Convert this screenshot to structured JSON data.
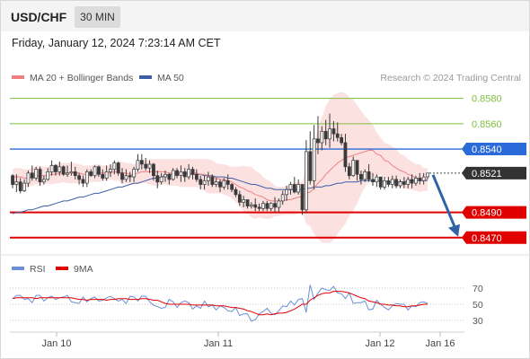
{
  "header": {
    "symbol": "USD/CHF",
    "timeframe": "30 MIN",
    "datetime": "Friday, January 12, 2024 7:23:14 AM CET"
  },
  "legend": {
    "ma20": "MA 20 + Bollinger Bands",
    "ma50": "MA 50",
    "credit": "Research © 2024 Trading Central"
  },
  "rsi_legend": {
    "rsi": "RSI",
    "ma9": "9MA"
  },
  "colors": {
    "resistance": "#7fbf40",
    "pivot": "#2a6ad9",
    "support": "#e00000",
    "ma20": "#f08080",
    "bollinger_fill": "#fbdcdc",
    "ma50": "#3b5ea8",
    "arrow": "#2f63a6",
    "candle_up": "#f4f4f4",
    "candle_down": "#3a3a3a",
    "rsi": "#6a8fd8",
    "rsi_ma": "#e00000"
  },
  "chart_data": {
    "type": "candlestick",
    "ylim": [
      0.8467,
      0.8584
    ],
    "levels": [
      {
        "value": 0.858,
        "label": "0.8580",
        "kind": "resistance"
      },
      {
        "value": 0.856,
        "label": "0.8560",
        "kind": "resistance"
      },
      {
        "value": 0.854,
        "label": "0.8540",
        "kind": "pivot"
      },
      {
        "value": 0.8521,
        "label": "0.8521",
        "kind": "last"
      },
      {
        "value": 0.849,
        "label": "0.8490",
        "kind": "support"
      },
      {
        "value": 0.847,
        "label": "0.8470",
        "kind": "support"
      }
    ],
    "x_ticks": [
      "Jan 10",
      "Jan 11",
      "Jan 12",
      "Jan 16"
    ],
    "rsi_ticks": [
      "70",
      "50",
      "30"
    ],
    "rsi_ylim": [
      20,
      80
    ],
    "forecast_arrow": {
      "from": 0.8521,
      "to": 0.847
    },
    "candles": [
      [
        0.8519,
        0.852,
        0.8512,
        0.8509
      ],
      [
        0.8512,
        0.852,
        0.8514,
        0.8506
      ],
      [
        0.8514,
        0.8517,
        0.8507,
        0.8505
      ],
      [
        0.8507,
        0.8516,
        0.8513,
        0.8506
      ],
      [
        0.8513,
        0.8523,
        0.8521,
        0.851
      ],
      [
        0.8521,
        0.8527,
        0.8517,
        0.8515
      ],
      [
        0.8517,
        0.8526,
        0.8524,
        0.8515
      ],
      [
        0.8524,
        0.8526,
        0.8514,
        0.8511
      ],
      [
        0.8514,
        0.8519,
        0.8516,
        0.8512
      ],
      [
        0.8516,
        0.8525,
        0.8522,
        0.8515
      ],
      [
        0.8522,
        0.8531,
        0.8527,
        0.8519
      ],
      [
        0.8527,
        0.8528,
        0.8522,
        0.8519
      ],
      [
        0.8522,
        0.853,
        0.8526,
        0.8519
      ],
      [
        0.8526,
        0.8527,
        0.852,
        0.8519
      ],
      [
        0.852,
        0.8527,
        0.8521,
        0.8518
      ],
      [
        0.8521,
        0.853,
        0.8522,
        0.8519
      ],
      [
        0.8522,
        0.8526,
        0.8519,
        0.8516
      ],
      [
        0.8519,
        0.8521,
        0.8516,
        0.8512
      ],
      [
        0.8516,
        0.8519,
        0.8513,
        0.851
      ],
      [
        0.8513,
        0.8524,
        0.8522,
        0.851
      ],
      [
        0.8522,
        0.8524,
        0.8519,
        0.8518
      ],
      [
        0.8519,
        0.8527,
        0.8526,
        0.8517
      ],
      [
        0.8526,
        0.8527,
        0.852,
        0.8518
      ],
      [
        0.852,
        0.8524,
        0.8517,
        0.8515
      ],
      [
        0.8517,
        0.8527,
        0.8522,
        0.8515
      ],
      [
        0.8522,
        0.8528,
        0.8524,
        0.8518
      ],
      [
        0.8524,
        0.8531,
        0.8529,
        0.852
      ],
      [
        0.8529,
        0.853,
        0.8521,
        0.8519
      ],
      [
        0.8521,
        0.8525,
        0.8516,
        0.8513
      ],
      [
        0.8516,
        0.8524,
        0.8519,
        0.8514
      ],
      [
        0.8519,
        0.8522,
        0.8518,
        0.8514
      ],
      [
        0.8518,
        0.8526,
        0.8524,
        0.8514
      ],
      [
        0.8524,
        0.8536,
        0.8531,
        0.8522
      ],
      [
        0.8531,
        0.8536,
        0.8528,
        0.8524
      ],
      [
        0.8528,
        0.8533,
        0.8525,
        0.8523
      ],
      [
        0.8525,
        0.8531,
        0.8528,
        0.8521
      ],
      [
        0.8528,
        0.8529,
        0.8519,
        0.8515
      ],
      [
        0.8519,
        0.8523,
        0.8514,
        0.8509
      ],
      [
        0.8514,
        0.8521,
        0.8518,
        0.8512
      ],
      [
        0.8518,
        0.8523,
        0.852,
        0.8514
      ],
      [
        0.852,
        0.8521,
        0.8516,
        0.8512
      ],
      [
        0.8516,
        0.8525,
        0.8523,
        0.8515
      ],
      [
        0.8523,
        0.8525,
        0.8519,
        0.8517
      ],
      [
        0.8519,
        0.8527,
        0.8522,
        0.8514
      ],
      [
        0.8522,
        0.8525,
        0.8518,
        0.8514
      ],
      [
        0.8518,
        0.8528,
        0.8524,
        0.8516
      ],
      [
        0.8524,
        0.8526,
        0.852,
        0.8516
      ],
      [
        0.852,
        0.8524,
        0.8516,
        0.8514
      ],
      [
        0.8516,
        0.8519,
        0.8512,
        0.8508
      ],
      [
        0.8512,
        0.8519,
        0.8515,
        0.8508
      ],
      [
        0.8515,
        0.8522,
        0.8518,
        0.8511
      ],
      [
        0.8518,
        0.852,
        0.8512,
        0.851
      ],
      [
        0.8512,
        0.8517,
        0.8514,
        0.851
      ],
      [
        0.8514,
        0.8516,
        0.851,
        0.8506
      ],
      [
        0.851,
        0.8517,
        0.8515,
        0.8508
      ],
      [
        0.8515,
        0.852,
        0.8512,
        0.8508
      ],
      [
        0.8512,
        0.8513,
        0.8508,
        0.8506
      ],
      [
        0.8508,
        0.851,
        0.8504,
        0.8502
      ],
      [
        0.8504,
        0.8507,
        0.8498,
        0.8495
      ],
      [
        0.8498,
        0.8503,
        0.85,
        0.8494
      ],
      [
        0.85,
        0.85,
        0.8495,
        0.8493
      ],
      [
        0.8495,
        0.8498,
        0.8496,
        0.8493
      ],
      [
        0.8496,
        0.8501,
        0.8494,
        0.8491
      ],
      [
        0.8494,
        0.8497,
        0.8493,
        0.8491
      ],
      [
        0.8493,
        0.8499,
        0.8497,
        0.8491
      ],
      [
        0.8497,
        0.8499,
        0.8493,
        0.8491
      ],
      [
        0.8493,
        0.8498,
        0.8497,
        0.8491
      ],
      [
        0.8497,
        0.8502,
        0.8494,
        0.849
      ],
      [
        0.8494,
        0.8501,
        0.8499,
        0.849
      ],
      [
        0.8499,
        0.8507,
        0.8504,
        0.8496
      ],
      [
        0.8504,
        0.8511,
        0.8508,
        0.8499
      ],
      [
        0.8508,
        0.8514,
        0.8512,
        0.8504
      ],
      [
        0.8512,
        0.8518,
        0.8506,
        0.8505
      ],
      [
        0.8506,
        0.8516,
        0.8512,
        0.8504
      ],
      [
        0.8512,
        0.8508,
        0.8492,
        0.8488
      ],
      [
        0.8492,
        0.8547,
        0.8538,
        0.849
      ],
      [
        0.8538,
        0.8554,
        0.8515,
        0.8512
      ],
      [
        0.8515,
        0.8559,
        0.8548,
        0.8508
      ],
      [
        0.8548,
        0.8566,
        0.8545,
        0.8536
      ],
      [
        0.8545,
        0.8558,
        0.8554,
        0.8539
      ],
      [
        0.8554,
        0.8563,
        0.8548,
        0.8543
      ],
      [
        0.8548,
        0.8568,
        0.8556,
        0.8541
      ],
      [
        0.8556,
        0.8562,
        0.8552,
        0.8546
      ],
      [
        0.8552,
        0.8561,
        0.8549,
        0.8546
      ],
      [
        0.8549,
        0.8552,
        0.8545,
        0.8543
      ],
      [
        0.8545,
        0.8552,
        0.8526,
        0.8522
      ],
      [
        0.8526,
        0.8529,
        0.8519,
        0.8516
      ],
      [
        0.8519,
        0.8534,
        0.8531,
        0.8518
      ],
      [
        0.8531,
        0.8531,
        0.852,
        0.8515
      ],
      [
        0.852,
        0.8523,
        0.8516,
        0.8512
      ],
      [
        0.8516,
        0.8524,
        0.8522,
        0.8514
      ],
      [
        0.8522,
        0.8528,
        0.8516,
        0.8514
      ],
      [
        0.8516,
        0.8521,
        0.8514,
        0.8511
      ],
      [
        0.8514,
        0.852,
        0.8518,
        0.851
      ],
      [
        0.8518,
        0.8518,
        0.851,
        0.8508
      ],
      [
        0.851,
        0.8518,
        0.8515,
        0.8508
      ],
      [
        0.8515,
        0.8518,
        0.8512,
        0.851
      ],
      [
        0.8512,
        0.8519,
        0.8516,
        0.8509
      ],
      [
        0.8516,
        0.8519,
        0.8511,
        0.8509
      ],
      [
        0.8511,
        0.8516,
        0.8514,
        0.8509
      ],
      [
        0.8514,
        0.8518,
        0.8512,
        0.8509
      ],
      [
        0.8512,
        0.8518,
        0.8516,
        0.8509
      ],
      [
        0.8516,
        0.852,
        0.8513,
        0.8509
      ],
      [
        0.8513,
        0.8519,
        0.8517,
        0.8511
      ],
      [
        0.8517,
        0.8521,
        0.8515,
        0.8512
      ],
      [
        0.8515,
        0.8521,
        0.8518,
        0.8512
      ],
      [
        0.8518,
        0.8521,
        0.8521,
        0.8516
      ]
    ],
    "ma20": [
      0.8518,
      0.8518,
      0.8518,
      0.8517,
      0.8517,
      0.8518,
      0.8519,
      0.8519,
      0.8519,
      0.8519,
      0.852,
      0.852,
      0.8521,
      0.8521,
      0.8521,
      0.8521,
      0.8521,
      0.8521,
      0.852,
      0.852,
      0.8521,
      0.8521,
      0.8521,
      0.8521,
      0.8521,
      0.8521,
      0.8522,
      0.8522,
      0.8521,
      0.8521,
      0.852,
      0.852,
      0.8521,
      0.8522,
      0.8522,
      0.8522,
      0.8522,
      0.8522,
      0.8522,
      0.8522,
      0.8521,
      0.8521,
      0.8521,
      0.8521,
      0.8521,
      0.8521,
      0.8521,
      0.8521,
      0.852,
      0.852,
      0.8519,
      0.8518,
      0.8517,
      0.8516,
      0.8516,
      0.8515,
      0.8514,
      0.8512,
      0.851,
      0.8509,
      0.8507,
      0.8506,
      0.8504,
      0.8503,
      0.8502,
      0.85,
      0.8499,
      0.8499,
      0.8499,
      0.8499,
      0.85,
      0.85,
      0.8501,
      0.8502,
      0.8502,
      0.8505,
      0.8506,
      0.8509,
      0.8513,
      0.8516,
      0.852,
      0.8523,
      0.8526,
      0.8529,
      0.8531,
      0.8533,
      0.8534,
      0.8535,
      0.8536,
      0.8537,
      0.8538,
      0.8539,
      0.8539,
      0.8536,
      0.8535,
      0.8531,
      0.853,
      0.8527,
      0.8525,
      0.8523,
      0.8522,
      0.852,
      0.8519,
      0.8517,
      0.8517,
      0.8516,
      0.8516
    ],
    "bb_upper": [
      0.8524,
      0.8525,
      0.8525,
      0.8524,
      0.8524,
      0.8525,
      0.8526,
      0.8527,
      0.8526,
      0.8526,
      0.8528,
      0.8528,
      0.8529,
      0.8529,
      0.8529,
      0.8529,
      0.8529,
      0.8528,
      0.8527,
      0.8527,
      0.8527,
      0.8528,
      0.8528,
      0.8527,
      0.8527,
      0.8527,
      0.8528,
      0.853,
      0.853,
      0.8529,
      0.8529,
      0.8528,
      0.853,
      0.8531,
      0.8531,
      0.8532,
      0.8532,
      0.8532,
      0.8532,
      0.8532,
      0.8532,
      0.8532,
      0.8532,
      0.8532,
      0.8532,
      0.8532,
      0.8532,
      0.8532,
      0.8532,
      0.8532,
      0.8532,
      0.8531,
      0.8529,
      0.8528,
      0.8528,
      0.8527,
      0.8526,
      0.8526,
      0.8526,
      0.8527,
      0.8526,
      0.8526,
      0.8523,
      0.8521,
      0.8518,
      0.8516,
      0.8514,
      0.8511,
      0.851,
      0.851,
      0.8511,
      0.8512,
      0.8513,
      0.8514,
      0.8514,
      0.8528,
      0.8533,
      0.8544,
      0.8557,
      0.8565,
      0.8574,
      0.8579,
      0.8583,
      0.8584,
      0.8585,
      0.8584,
      0.8581,
      0.8579,
      0.8575,
      0.857,
      0.8566,
      0.8563,
      0.8559,
      0.8553,
      0.8549,
      0.8545,
      0.8544,
      0.8542,
      0.854,
      0.8536,
      0.8535,
      0.8532,
      0.853,
      0.8528,
      0.8528,
      0.8525,
      0.8525
    ],
    "bb_lower": [
      0.8512,
      0.8511,
      0.851,
      0.851,
      0.851,
      0.8511,
      0.8512,
      0.8512,
      0.8512,
      0.8513,
      0.8512,
      0.8513,
      0.8513,
      0.8514,
      0.8513,
      0.8513,
      0.8513,
      0.8513,
      0.8513,
      0.8513,
      0.8514,
      0.8514,
      0.8514,
      0.8515,
      0.8515,
      0.8516,
      0.8515,
      0.8515,
      0.8512,
      0.8513,
      0.8512,
      0.8512,
      0.8512,
      0.8513,
      0.8513,
      0.8512,
      0.8511,
      0.8511,
      0.8512,
      0.8512,
      0.8511,
      0.8511,
      0.8511,
      0.851,
      0.851,
      0.851,
      0.851,
      0.851,
      0.8509,
      0.8507,
      0.8505,
      0.8505,
      0.8505,
      0.8505,
      0.8504,
      0.8503,
      0.8501,
      0.8498,
      0.8495,
      0.8491,
      0.8489,
      0.8486,
      0.8485,
      0.8486,
      0.8485,
      0.8485,
      0.8485,
      0.8487,
      0.8487,
      0.8488,
      0.8488,
      0.8488,
      0.8488,
      0.8489,
      0.849,
      0.8481,
      0.8479,
      0.8473,
      0.8469,
      0.8466,
      0.8466,
      0.8466,
      0.8468,
      0.8473,
      0.8477,
      0.8481,
      0.8487,
      0.8491,
      0.8497,
      0.8504,
      0.851,
      0.8514,
      0.8519,
      0.8518,
      0.852,
      0.8517,
      0.8515,
      0.8511,
      0.851,
      0.851,
      0.8509,
      0.8508,
      0.8508,
      0.8507,
      0.8506,
      0.8507,
      0.8507
    ],
    "ma50": [
      0.8489,
      0.849,
      0.849,
      0.8491,
      0.8492,
      0.8492,
      0.8493,
      0.8494,
      0.8495,
      0.8495,
      0.8496,
      0.8497,
      0.8498,
      0.8499,
      0.8499,
      0.85,
      0.8501,
      0.8502,
      0.8502,
      0.8503,
      0.8504,
      0.8505,
      0.8505,
      0.8506,
      0.8507,
      0.8508,
      0.8509,
      0.851,
      0.851,
      0.8511,
      0.8512,
      0.8513,
      0.8513,
      0.8514,
      0.8515,
      0.8516,
      0.8517,
      0.8517,
      0.8518,
      0.8519,
      0.852,
      0.852,
      0.8521,
      0.8521,
      0.8521,
      0.852,
      0.852,
      0.852,
      0.852,
      0.8519,
      0.8519,
      0.8519,
      0.8518,
      0.8518,
      0.8518,
      0.8517,
      0.8517,
      0.8516,
      0.8515,
      0.8514,
      0.8513,
      0.8512,
      0.8512,
      0.8511,
      0.851,
      0.8509,
      0.8509,
      0.8508,
      0.8508,
      0.8508,
      0.8508,
      0.8508,
      0.8508,
      0.8508,
      0.8508,
      0.8509,
      0.8509,
      0.851,
      0.851,
      0.851,
      0.8511,
      0.8511,
      0.8512,
      0.8513,
      0.8513,
      0.8514,
      0.8514,
      0.8514,
      0.8514,
      0.8515,
      0.8515,
      0.8515,
      0.8515,
      0.8515,
      0.8515,
      0.8514,
      0.8514,
      0.8514,
      0.8514,
      0.8514,
      0.8514,
      0.8515,
      0.8515,
      0.8515,
      0.8515,
      0.8515,
      0.8515
    ],
    "rsi": [
      57,
      61,
      61,
      56,
      57,
      52,
      61,
      61,
      54,
      58,
      60,
      56,
      58,
      59,
      61,
      53,
      52,
      51,
      59,
      53,
      57,
      59,
      54,
      55,
      58,
      60,
      57,
      54,
      56,
      51,
      60,
      59,
      54,
      60,
      60,
      53,
      49,
      47,
      45,
      46,
      56,
      53,
      46,
      52,
      54,
      52,
      44,
      48,
      45,
      54,
      47,
      49,
      43,
      48,
      46,
      42,
      41,
      46,
      36,
      38,
      38,
      29,
      31,
      38,
      41,
      45,
      39,
      37,
      42,
      48,
      47,
      54,
      49,
      56,
      57,
      40,
      74,
      56,
      64,
      70,
      68,
      67,
      72,
      64,
      63,
      57,
      64,
      51,
      52,
      52,
      54,
      43,
      44,
      55,
      50,
      46,
      43,
      48,
      51,
      50,
      50,
      43,
      48,
      47,
      52,
      53,
      51
    ],
    "rsi_ma": [
      57,
      58,
      58,
      58,
      58,
      58,
      57,
      58,
      58,
      58,
      58,
      58,
      58,
      58,
      58,
      58,
      57,
      56,
      56,
      55,
      56,
      56,
      56,
      56,
      55,
      56,
      56,
      57,
      57,
      57,
      56,
      56,
      56,
      57,
      57,
      56,
      55,
      55,
      53,
      51,
      50,
      50,
      50,
      50,
      50,
      50,
      49,
      49,
      49,
      49,
      49,
      49,
      48,
      48,
      48,
      47,
      46,
      46,
      45,
      44,
      42,
      41,
      39,
      37,
      37,
      38,
      37,
      38,
      39,
      39,
      40,
      42,
      44,
      47,
      50,
      50,
      55,
      58,
      61,
      63,
      64,
      64,
      66,
      66,
      66,
      65,
      64,
      62,
      60,
      58,
      57,
      54,
      53,
      52,
      50,
      50,
      49,
      49,
      48,
      48,
      47,
      47,
      48,
      48,
      49,
      50,
      50
    ]
  }
}
